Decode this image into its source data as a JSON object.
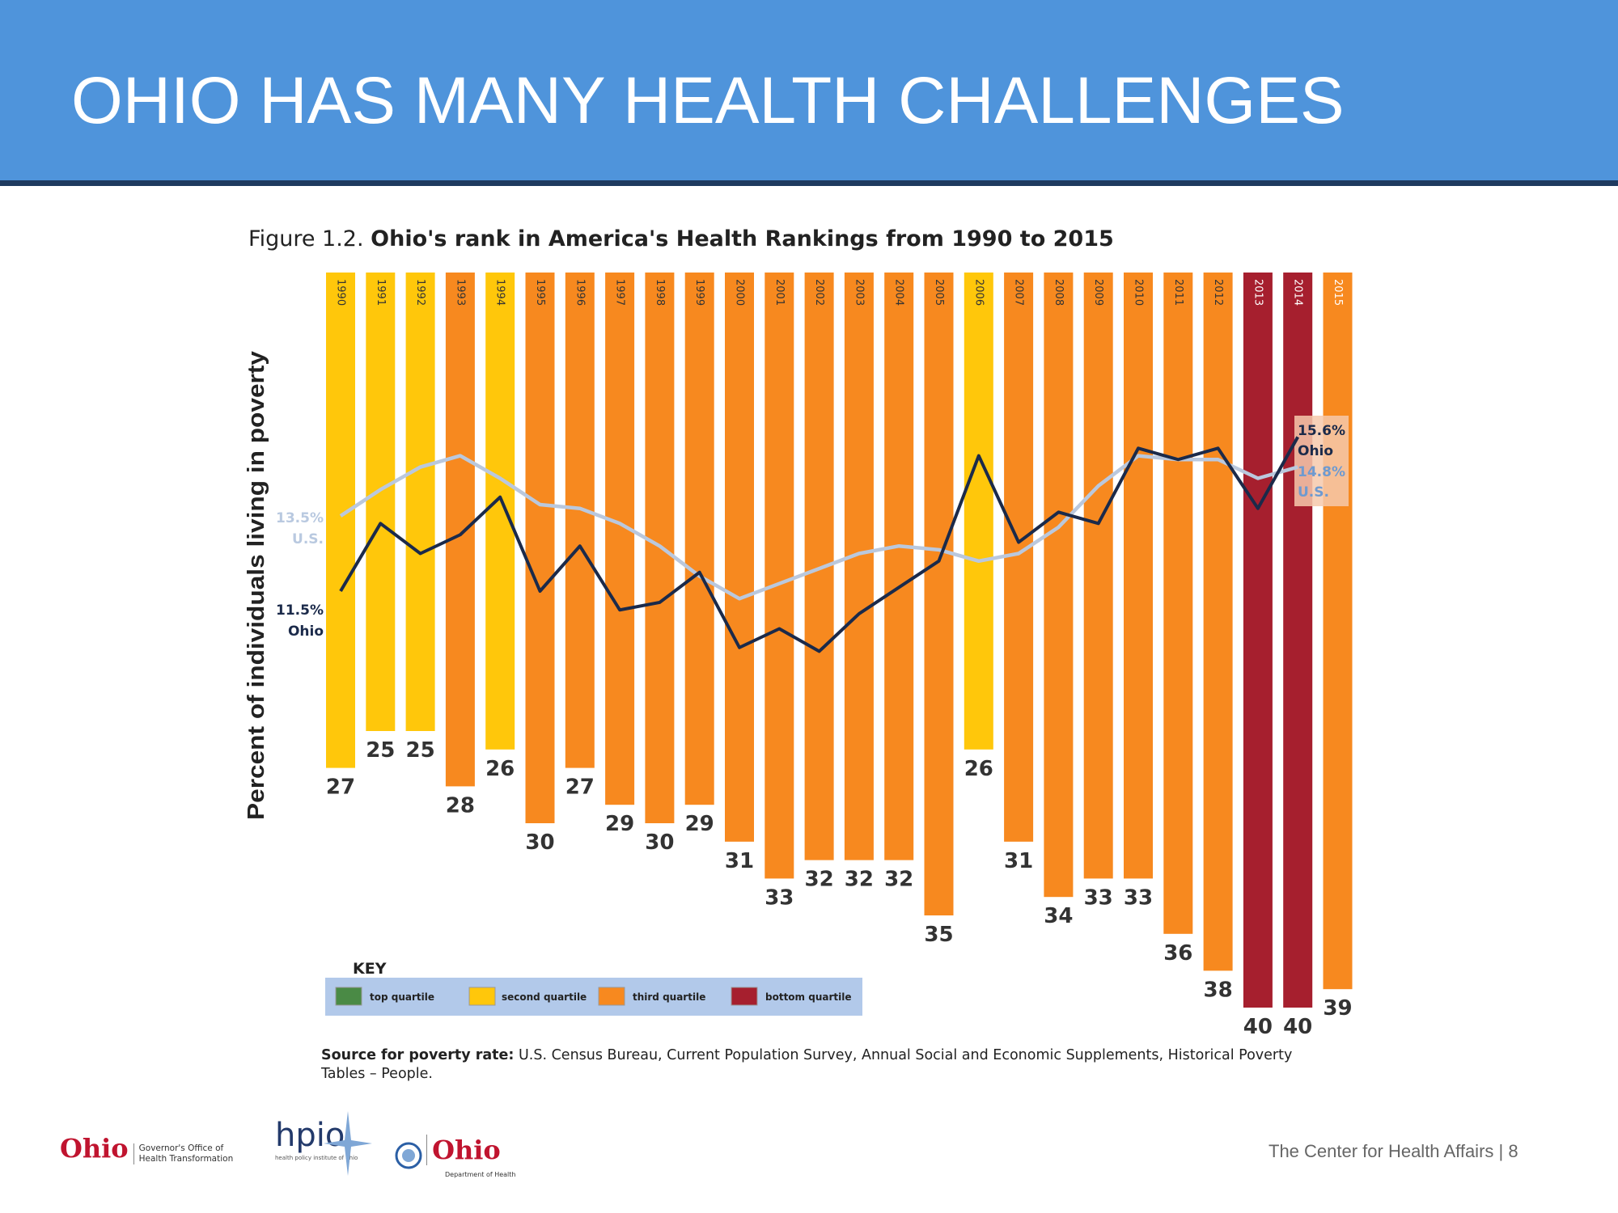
{
  "header": {
    "title": "OHIO HAS MANY HEALTH CHALLENGES"
  },
  "figure": {
    "label": "Figure 1.2.",
    "title": "Ohio's rank in America's Health Rankings from 1990 to 2015"
  },
  "chart_data": {
    "type": "bar",
    "title": "Ohio's rank in America's Health Rankings from 1990 to 2015",
    "ylabel": "Percent of individuals living in poverty",
    "categories": [
      "1990",
      "1991",
      "1992",
      "1993",
      "1994",
      "1995",
      "1996",
      "1997",
      "1998",
      "1999",
      "2000",
      "2001",
      "2002",
      "2003",
      "2004",
      "2005",
      "2006",
      "2007",
      "2008",
      "2009",
      "2010",
      "2011",
      "2012",
      "2013",
      "2014",
      "2015"
    ],
    "rank": [
      27,
      25,
      25,
      28,
      26,
      30,
      27,
      29,
      30,
      29,
      31,
      33,
      32,
      32,
      32,
      35,
      26,
      31,
      34,
      33,
      33,
      36,
      38,
      40,
      40,
      39
    ],
    "quartile": [
      "second",
      "second",
      "second",
      "third",
      "second",
      "third",
      "third",
      "third",
      "third",
      "third",
      "third",
      "third",
      "third",
      "third",
      "third",
      "third",
      "second",
      "third",
      "third",
      "third",
      "third",
      "third",
      "third",
      "bottom",
      "bottom",
      "third"
    ],
    "quartile_colors": {
      "top": "#4A8A45",
      "second": "#FFC70B",
      "third": "#F7891F",
      "bottom": "#A61F2E"
    },
    "lines": [
      {
        "name": "Ohio",
        "color": "#1B2A4A",
        "x": [
          "1990",
          "1991",
          "1992",
          "1993",
          "1994",
          "1995",
          "1996",
          "1997",
          "1998",
          "1999",
          "2000",
          "2001",
          "2002",
          "2003",
          "2004",
          "2005",
          "2006",
          "2007",
          "2008",
          "2009",
          "2010",
          "2011",
          "2012",
          "2013",
          "2014"
        ],
        "values": [
          11.5,
          13.3,
          12.5,
          13.0,
          14.0,
          11.5,
          12.7,
          11.0,
          11.2,
          12.0,
          10.0,
          10.5,
          9.9,
          10.9,
          11.6,
          12.3,
          15.1,
          12.8,
          13.6,
          13.3,
          15.3,
          15.0,
          15.3,
          13.7,
          15.6
        ]
      },
      {
        "name": "U.S.",
        "color": "#BAC8DD",
        "x": [
          "1990",
          "1991",
          "1992",
          "1993",
          "1994",
          "1995",
          "1996",
          "1997",
          "1998",
          "1999",
          "2000",
          "2001",
          "2002",
          "2003",
          "2004",
          "2005",
          "2006",
          "2007",
          "2008",
          "2009",
          "2010",
          "2011",
          "2012",
          "2013",
          "2014"
        ],
        "values": [
          13.5,
          14.2,
          14.8,
          15.1,
          14.5,
          13.8,
          13.7,
          13.3,
          12.7,
          11.9,
          11.3,
          11.7,
          12.1,
          12.5,
          12.7,
          12.6,
          12.3,
          12.5,
          13.2,
          14.3,
          15.1,
          15.0,
          15.0,
          14.5,
          14.8
        ]
      }
    ],
    "annotations": {
      "us_start": {
        "value": "13.5%",
        "label": "U.S."
      },
      "ohio_start": {
        "value": "11.5%",
        "label": "Ohio"
      },
      "ohio_end": {
        "value": "15.6%",
        "label": "Ohio"
      },
      "us_end": {
        "value": "14.8%",
        "label": "U.S."
      }
    },
    "legend": {
      "title": "KEY",
      "placement": "bottom-left",
      "items": [
        {
          "key": "top",
          "label": "top quartile"
        },
        {
          "key": "second",
          "label": "second quartile"
        },
        {
          "key": "third",
          "label": "third quartile"
        },
        {
          "key": "bottom",
          "label": "bottom quartile"
        }
      ]
    }
  },
  "source": {
    "label": "Source for poverty rate:",
    "text": "U.S. Census Bureau, Current Population Survey, Annual Social and Economic Supplements, Historical Poverty Tables – People."
  },
  "footer": {
    "logos": {
      "ohio_gov": {
        "word": "Ohio",
        "line1": "Governor's Office of",
        "line2": "Health Transformation"
      },
      "hpio": {
        "word": "hpio",
        "tagline": "health policy institute of ohio"
      },
      "ohio_doh": {
        "word": "Ohio",
        "subtitle": "Department of Health"
      }
    },
    "text": "The Center for Health Affairs | 8"
  }
}
